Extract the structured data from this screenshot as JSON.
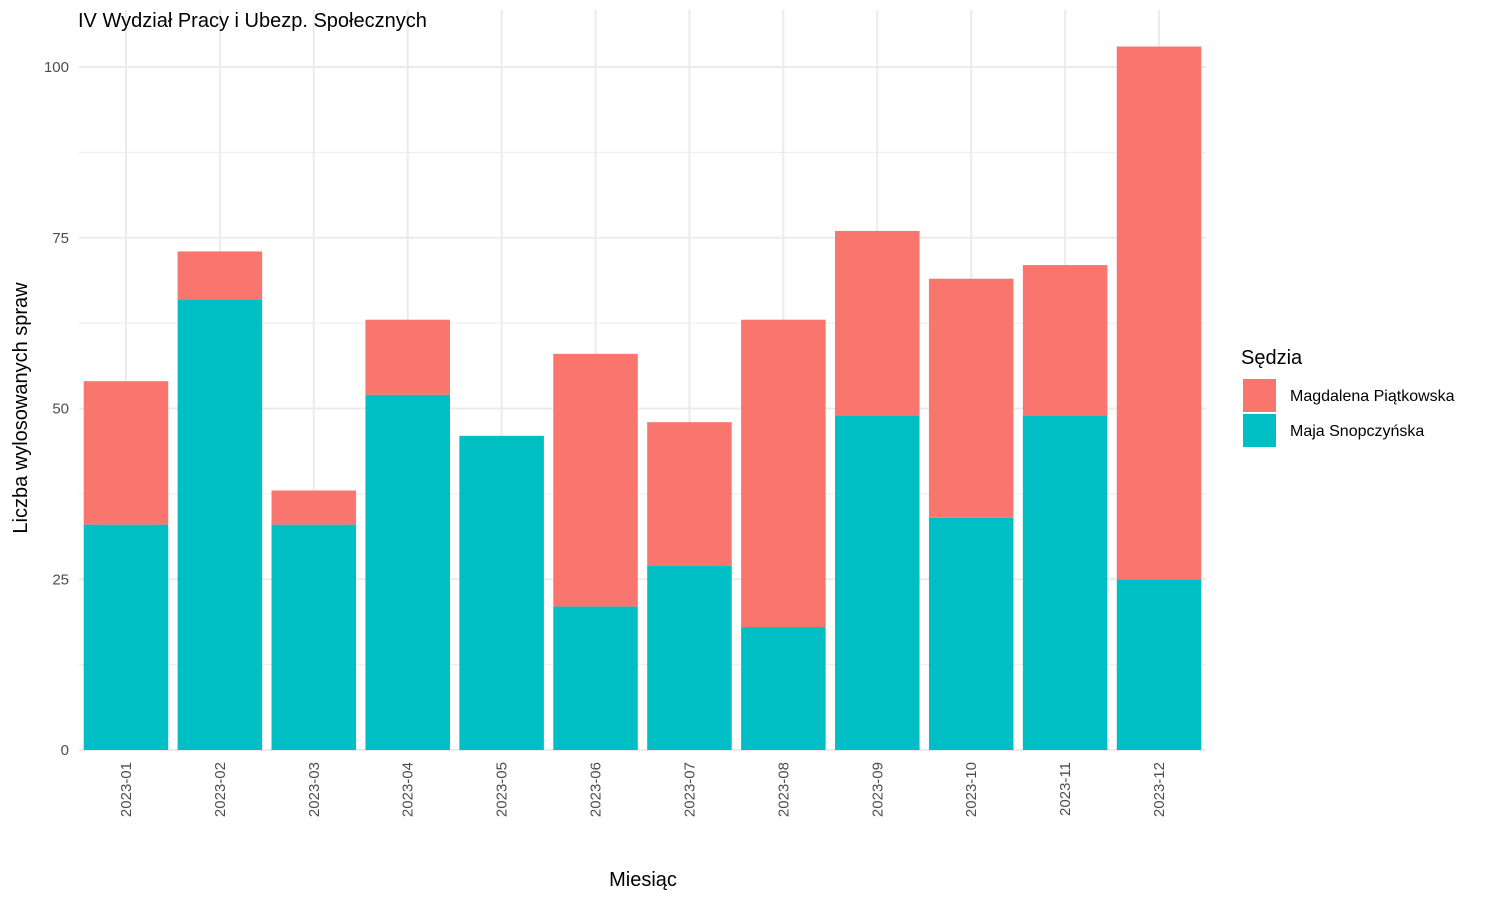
{
  "chart_data": {
    "type": "bar",
    "stacked": true,
    "title": "IV Wydział Pracy i Ubezp. Społecznych",
    "xlabel": "Miesiąc",
    "ylabel": "Liczba wylosowanych spraw",
    "categories": [
      "2023-01",
      "2023-02",
      "2023-03",
      "2023-04",
      "2023-05",
      "2023-06",
      "2023-07",
      "2023-08",
      "2023-09",
      "2023-10",
      "2023-11",
      "2023-12"
    ],
    "series": [
      {
        "name": "Maja Snopczyńska",
        "color": "#00BFC4",
        "values": [
          33,
          66,
          33,
          52,
          46,
          21,
          27,
          18,
          49,
          34,
          49,
          25
        ]
      },
      {
        "name": "Magdalena Piątkowska",
        "color": "#F8766D",
        "values": [
          21,
          7,
          5,
          11,
          0,
          37,
          21,
          45,
          27,
          35,
          22,
          78
        ]
      }
    ],
    "ylim": [
      0,
      103
    ],
    "yticks": [
      0,
      25,
      50,
      75,
      100
    ],
    "grid": true,
    "legend": {
      "title": "Sędzia",
      "position": "right",
      "entries": [
        {
          "label": "Magdalena Piątkowska",
          "color": "#F8766D"
        },
        {
          "label": "Maja Snopczyńska",
          "color": "#00BFC4"
        }
      ]
    }
  }
}
